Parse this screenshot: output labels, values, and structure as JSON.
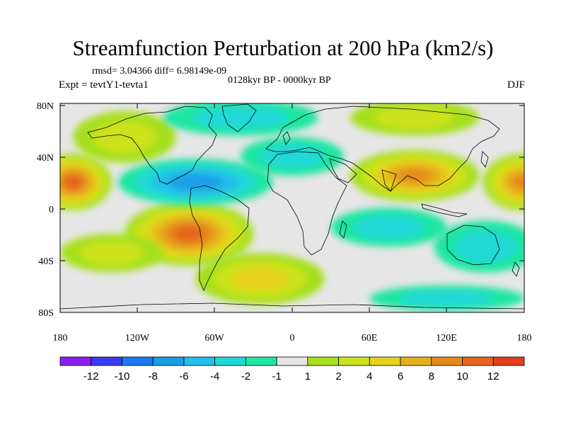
{
  "figure": {
    "title": "Streamfunction Perturbation at 200 hPa (km2/s)",
    "stats": "rmsd= 3.04366 diff= 6.98149e-09",
    "period": "0128kyr BP - 0000kyr BP",
    "experiment": "Expt = tevtY1-tevta1",
    "season": "DJF"
  },
  "axes": {
    "lat_ticks": [
      "80N",
      "40N",
      "0",
      "40S",
      "80S"
    ],
    "lon_ticks": [
      "180",
      "120W",
      "60W",
      "0",
      "60E",
      "120E",
      "180"
    ]
  },
  "colorbar": {
    "colors": [
      "#8a1ff0",
      "#3a3af0",
      "#1a78f0",
      "#1a9ee6",
      "#20bee8",
      "#20d8d8",
      "#1ee6a0",
      "#e6e6e6",
      "#a6e01e",
      "#cce21e",
      "#e6d21e",
      "#e6b01e",
      "#e68a1e",
      "#e6641e",
      "#e63c1e"
    ],
    "labels": [
      "-12",
      "-10",
      "-8",
      "-6",
      "-4",
      "-2",
      "-1",
      "1",
      "2",
      "4",
      "6",
      "8",
      "10",
      "12"
    ]
  },
  "map_fields": [
    {
      "name": "pos-central-pacific-north",
      "cx": -170,
      "cy": 20,
      "rx": 30,
      "ry": 22,
      "level": 10
    },
    {
      "name": "pos-dateline-east",
      "cx": 178,
      "cy": 20,
      "rx": 30,
      "ry": 22,
      "level": 9
    },
    {
      "name": "pos-asia-subtropics",
      "cx": 95,
      "cy": 25,
      "rx": 50,
      "ry": 20,
      "level": 8
    },
    {
      "name": "pos-north-atlantic-high",
      "cx": 95,
      "cy": 70,
      "rx": 50,
      "ry": 14,
      "level": 3
    },
    {
      "name": "pos-north-america-north",
      "cx": -130,
      "cy": 55,
      "rx": 40,
      "ry": 20,
      "level": 3
    },
    {
      "name": "pos-south-america",
      "cx": -80,
      "cy": -20,
      "rx": 50,
      "ry": 25,
      "level": 10
    },
    {
      "name": "pos-south-atlantic",
      "cx": -25,
      "cy": -55,
      "rx": 50,
      "ry": 20,
      "level": 5
    },
    {
      "name": "pos-south-pacific",
      "cx": -140,
      "cy": -35,
      "rx": 40,
      "ry": 15,
      "level": 2
    },
    {
      "name": "neg-tropical-atlantic",
      "cx": -75,
      "cy": 20,
      "rx": 60,
      "ry": 18,
      "level": -6
    },
    {
      "name": "neg-africa-north",
      "cx": 0,
      "cy": 40,
      "rx": 40,
      "ry": 15,
      "level": -3
    },
    {
      "name": "neg-arctic",
      "cx": -40,
      "cy": 70,
      "rx": 60,
      "ry": 14,
      "level": -2
    },
    {
      "name": "neg-indian-ocean",
      "cx": 75,
      "cy": -15,
      "rx": 45,
      "ry": 15,
      "level": -3
    },
    {
      "name": "neg-south-pacific-east",
      "cx": 150,
      "cy": -30,
      "rx": 40,
      "ry": 20,
      "level": -2
    },
    {
      "name": "neg-southern-ocean",
      "cx": 120,
      "cy": -70,
      "rx": 60,
      "ry": 10,
      "level": -2
    }
  ]
}
